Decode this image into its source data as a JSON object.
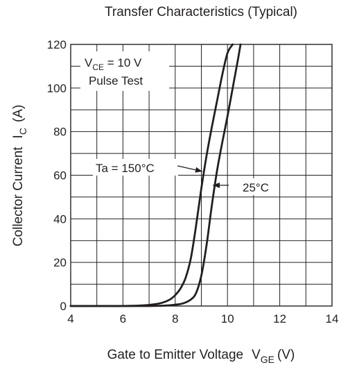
{
  "chart_data": {
    "type": "line",
    "title": "Transfer Characteristics (Typical)",
    "xlabel": {
      "main": "Gate to Emitter Voltage",
      "symbol": "V",
      "subscript": "GE",
      "unit": "(V)"
    },
    "ylabel": {
      "main": "Collector Current",
      "symbol": "I",
      "subscript": "C",
      "unit": "(A)"
    },
    "xlim": [
      4,
      14
    ],
    "ylim": [
      0,
      120
    ],
    "x_ticks": [
      4,
      6,
      8,
      10,
      12,
      14
    ],
    "y_ticks": [
      0,
      20,
      40,
      60,
      80,
      100,
      120
    ],
    "x_minor_step": 1,
    "y_minor_step": 10,
    "grid": true,
    "conditions": {
      "line1": {
        "symbol": "V",
        "subscript": "CE",
        "rest": " = 10 V"
      },
      "line2": "Pulse Test"
    },
    "series": [
      {
        "name": "Ta = 150°C",
        "x": [
          4.0,
          5.0,
          6.0,
          6.8,
          7.2,
          7.5,
          7.8,
          8.0,
          8.2,
          8.4,
          8.6,
          8.8,
          9.0,
          9.2,
          9.4,
          9.6,
          9.8,
          10.0,
          10.2
        ],
        "y": [
          0,
          0,
          0,
          0.3,
          0.8,
          1.5,
          3,
          5,
          8,
          13,
          22,
          37,
          54,
          69,
          82,
          94,
          106,
          116,
          120
        ]
      },
      {
        "name": "25°C",
        "x": [
          4.0,
          6.0,
          7.0,
          7.6,
          8.0,
          8.3,
          8.6,
          8.8,
          9.0,
          9.2,
          9.4,
          9.6,
          9.8,
          10.0,
          10.2,
          10.4,
          10.5
        ],
        "y": [
          0,
          0,
          0,
          0.2,
          0.6,
          1.2,
          3,
          6,
          14,
          28,
          46,
          62,
          75,
          87,
          100,
          113,
          120
        ]
      }
    ]
  }
}
